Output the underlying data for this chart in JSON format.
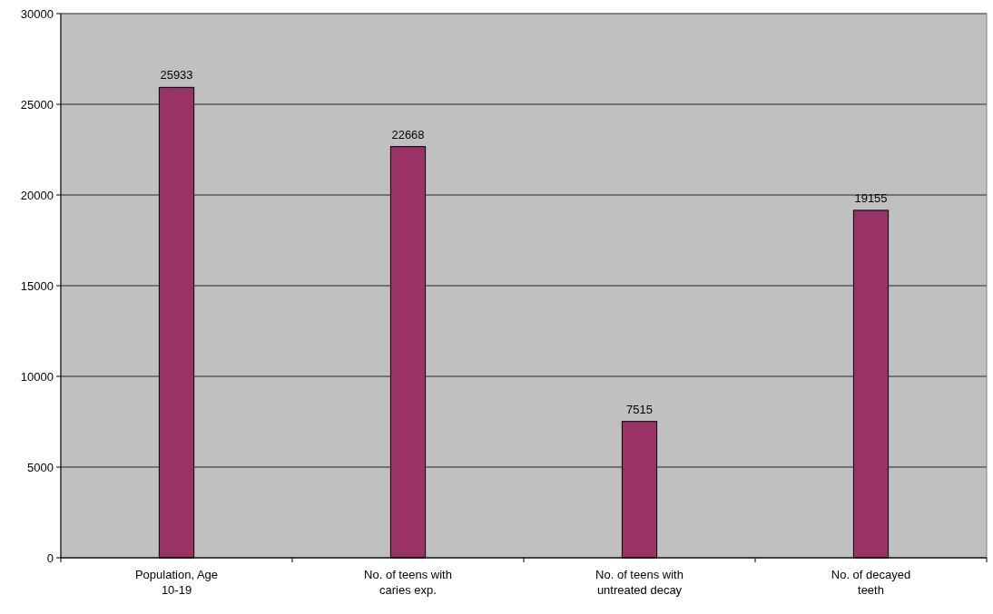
{
  "chart_data": {
    "type": "bar",
    "categories": [
      "Population, Age 10-19",
      "No. of teens with caries exp.",
      "No. of teens with untreated decay",
      "No. of decayed teeth"
    ],
    "values": [
      25933,
      22668,
      7515,
      19155
    ],
    "color": "#993366",
    "ylim": [
      0,
      30000
    ],
    "yticks": [
      0,
      5000,
      10000,
      15000,
      20000,
      25000,
      30000
    ],
    "grid": "y",
    "data_labels": true
  }
}
